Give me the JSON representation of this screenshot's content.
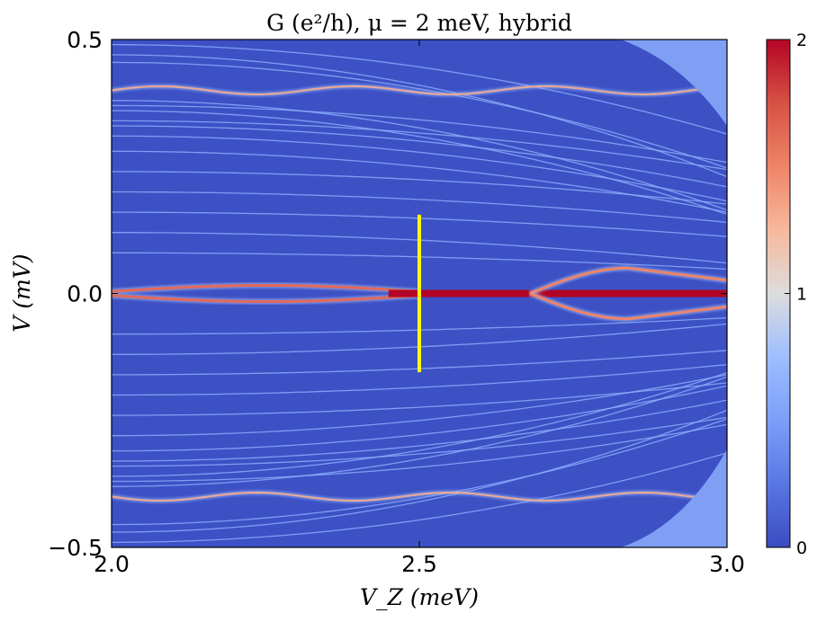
{
  "chart_data": {
    "type": "heatmap",
    "title": "G (e²/h),  μ = 2 meV, hybrid",
    "xlabel": "V_Z (meV)",
    "ylabel": "V (mV)",
    "xlim": [
      2.0,
      3.0
    ],
    "ylim": [
      -0.5,
      0.5
    ],
    "x_ticks": [
      "2.0",
      "2.5",
      "3.0"
    ],
    "y_ticks": [
      "−0.5",
      "0.0",
      "0.5"
    ],
    "colorbar": {
      "range": [
        0,
        2
      ],
      "ticks": [
        "0",
        "1",
        "2"
      ],
      "colormap": "coolwarm",
      "low_color": "#3b4cc0",
      "mid_color": "#dddddd",
      "high_color": "#b40426"
    },
    "features": [
      {
        "name": "zero-bias peak",
        "x": [
          2.45,
          3.0
        ],
        "y": 0.0,
        "G": 2.0
      },
      {
        "name": "split zero-mode (upper)",
        "x": [
          2.0,
          2.5
        ],
        "y_peak": 0.012,
        "G": 1.6
      },
      {
        "name": "split zero-mode (lower)",
        "x": [
          2.0,
          2.5
        ],
        "y_peak": -0.012,
        "G": 1.6
      },
      {
        "name": "Andreev arc (upper)",
        "x": [
          2.68,
          3.0
        ],
        "y_peak": 0.045,
        "G": 1.5
      },
      {
        "name": "Andreev arc (lower)",
        "x": [
          2.68,
          3.0
        ],
        "y_peak": -0.045,
        "G": 1.5
      },
      {
        "name": "gap edge (upper)",
        "x": [
          2.0,
          3.0
        ],
        "y": 0.4,
        "G": 1.4
      },
      {
        "name": "gap edge (lower)",
        "x": [
          2.0,
          3.0
        ],
        "y": -0.4,
        "G": 1.4
      }
    ],
    "marker_line": {
      "x": 2.5,
      "y_range": [
        -0.155,
        0.155
      ],
      "color": "#ffff00"
    }
  }
}
